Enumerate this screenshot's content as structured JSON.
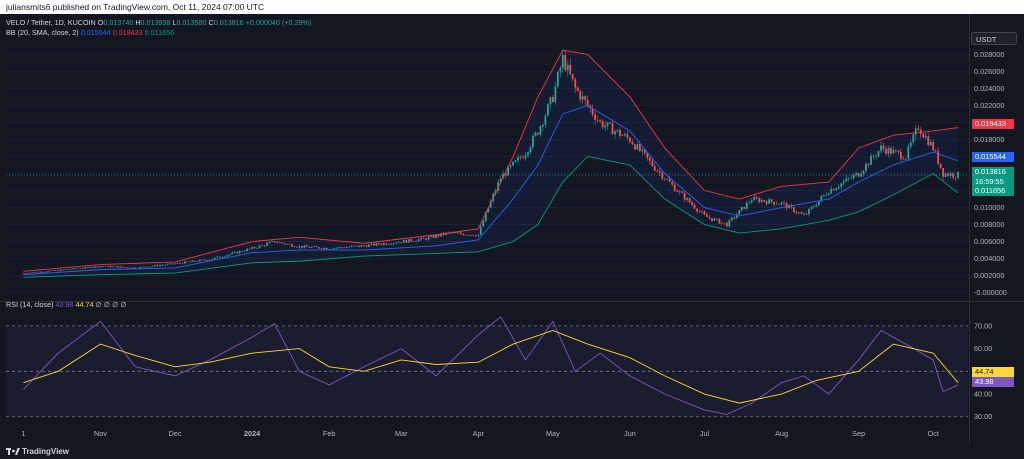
{
  "header": {
    "publisher_text": "juliansmits6 published on TradingView.com, Oct 11, 2024 07:00 UTC"
  },
  "legend": {
    "symbol": "VELO / Tether, 1D, KUCOIN",
    "o_label": "O",
    "o_value": "0.013740",
    "h_label": "H",
    "h_value": "0.013938",
    "l_label": "L",
    "l_value": "0.013580",
    "c_label": "C",
    "c_value": "0.013816",
    "change": "+0.000040 (+0.29%)",
    "bb_label": "BB (20, SMA, close, 2)",
    "bb_basis": "0.015544",
    "bb_upper": "0.019433",
    "bb_lower": "0.011656",
    "rsi_label": "RSI (14, close)",
    "rsi_value": "43.98",
    "rsi_ma": "44.74",
    "rsi_na": "∅ ∅ ∅ ∅"
  },
  "currency_badge": "USDT",
  "price_tags": {
    "bb_upper": "0.019433",
    "bb_basis": "0.015544",
    "last_price": "0.013816",
    "countdown": "16:59:55",
    "bb_lower": "0.011656",
    "rsi_ma": "44.74",
    "rsi": "43.98"
  },
  "colors": {
    "background": "#131722",
    "candle_up": "#26a69a",
    "candle_down": "#ef5350",
    "bb_basis": "#2962ff",
    "bb_upper": "#f23645",
    "bb_lower": "#089981",
    "rsi": "#7e57c2",
    "rsi_ma": "#fdd835"
  },
  "footer": {
    "brand": "TradingView"
  },
  "chart_data": [
    {
      "type": "line",
      "title": "VELO / Tether, 1D, KUCOIN",
      "y_ticks": [
        "0.028000",
        "0.026000",
        "0.024000",
        "0.022000",
        "0.020000",
        "0.018000",
        "0.016000",
        "0.014000",
        "0.012000",
        "0.010000",
        "0.008000",
        "0.006000",
        "0.004000",
        "0.002000",
        "-0.000000"
      ],
      "ylim": [
        -0.0004,
        0.0304
      ],
      "x_ticks": [
        "1",
        "Nov",
        "Dec",
        "2024",
        "Feb",
        "Mar",
        "Apr",
        "May",
        "Jun",
        "Jul",
        "Aug",
        "Sep",
        "Oct"
      ],
      "series": [
        {
          "name": "VELO/USDT close",
          "x": [
            "2023-10-01",
            "2023-10-15",
            "2023-11-01",
            "2023-11-15",
            "2023-12-01",
            "2023-12-15",
            "2024-01-01",
            "2024-01-10",
            "2024-01-20",
            "2024-02-01",
            "2024-02-15",
            "2024-03-01",
            "2024-03-10",
            "2024-03-20",
            "2024-04-01",
            "2024-04-05",
            "2024-04-10",
            "2024-04-15",
            "2024-04-20",
            "2024-04-25",
            "2024-05-01",
            "2024-05-05",
            "2024-05-10",
            "2024-05-15",
            "2024-05-20",
            "2024-06-01",
            "2024-06-10",
            "2024-06-20",
            "2024-07-01",
            "2024-07-10",
            "2024-07-20",
            "2024-08-01",
            "2024-08-10",
            "2024-08-20",
            "2024-09-01",
            "2024-09-10",
            "2024-09-20",
            "2024-09-25",
            "2024-10-01",
            "2024-10-05",
            "2024-10-11"
          ],
          "y": [
            0.0023,
            0.0026,
            0.0031,
            0.0029,
            0.0034,
            0.0039,
            0.0052,
            0.006,
            0.0054,
            0.0052,
            0.0055,
            0.006,
            0.0063,
            0.007,
            0.0068,
            0.01,
            0.0135,
            0.015,
            0.0165,
            0.019,
            0.023,
            0.0275,
            0.024,
            0.022,
            0.02,
            0.018,
            0.015,
            0.012,
            0.009,
            0.008,
            0.011,
            0.0105,
            0.009,
            0.012,
            0.014,
            0.017,
            0.016,
            0.0195,
            0.017,
            0.014,
            0.0138
          ]
        },
        {
          "name": "BB upper",
          "x": [
            "2023-10-01",
            "2023-11-01",
            "2023-12-01",
            "2024-01-01",
            "2024-01-20",
            "2024-02-15",
            "2024-03-15",
            "2024-04-01",
            "2024-04-15",
            "2024-04-25",
            "2024-05-05",
            "2024-05-15",
            "2024-06-01",
            "2024-06-15",
            "2024-07-01",
            "2024-07-15",
            "2024-08-01",
            "2024-08-20",
            "2024-09-01",
            "2024-09-15",
            "2024-10-01",
            "2024-10-11"
          ],
          "y": [
            0.0025,
            0.0033,
            0.0036,
            0.006,
            0.0065,
            0.0058,
            0.0068,
            0.0075,
            0.016,
            0.023,
            0.0285,
            0.028,
            0.023,
            0.017,
            0.012,
            0.011,
            0.0125,
            0.013,
            0.017,
            0.0185,
            0.019,
            0.0194
          ]
        },
        {
          "name": "BB basis",
          "x": [
            "2023-10-01",
            "2023-11-01",
            "2023-12-01",
            "2024-01-01",
            "2024-01-20",
            "2024-02-15",
            "2024-03-15",
            "2024-04-01",
            "2024-04-15",
            "2024-04-25",
            "2024-05-05",
            "2024-05-15",
            "2024-06-01",
            "2024-06-15",
            "2024-07-01",
            "2024-07-15",
            "2024-08-01",
            "2024-08-20",
            "2024-09-01",
            "2024-09-15",
            "2024-10-01",
            "2024-10-11"
          ],
          "y": [
            0.0021,
            0.0027,
            0.0029,
            0.0047,
            0.005,
            0.005,
            0.0055,
            0.0062,
            0.011,
            0.015,
            0.021,
            0.022,
            0.019,
            0.014,
            0.01,
            0.009,
            0.01,
            0.011,
            0.013,
            0.015,
            0.0165,
            0.0155
          ]
        },
        {
          "name": "BB lower",
          "x": [
            "2023-10-01",
            "2023-11-01",
            "2023-12-01",
            "2024-01-01",
            "2024-01-20",
            "2024-02-15",
            "2024-03-15",
            "2024-04-01",
            "2024-04-15",
            "2024-04-25",
            "2024-05-05",
            "2024-05-15",
            "2024-06-01",
            "2024-06-15",
            "2024-07-01",
            "2024-07-15",
            "2024-08-01",
            "2024-08-20",
            "2024-09-01",
            "2024-09-15",
            "2024-10-01",
            "2024-10-11"
          ],
          "y": [
            0.0018,
            0.0021,
            0.0023,
            0.0035,
            0.0037,
            0.0043,
            0.0046,
            0.0048,
            0.006,
            0.008,
            0.013,
            0.016,
            0.015,
            0.011,
            0.008,
            0.007,
            0.0075,
            0.0085,
            0.0095,
            0.0115,
            0.014,
            0.0117
          ]
        }
      ]
    },
    {
      "type": "line",
      "title": "RSI (14, close)",
      "y_ticks": [
        "70.00",
        "60.00",
        "50.00",
        "40.00",
        "30.00"
      ],
      "ylim": [
        29,
        77
      ],
      "series": [
        {
          "name": "RSI",
          "x": [
            "2023-10-01",
            "2023-10-15",
            "2023-11-01",
            "2023-11-15",
            "2023-12-01",
            "2023-12-15",
            "2024-01-01",
            "2024-01-10",
            "2024-01-20",
            "2024-02-01",
            "2024-02-15",
            "2024-03-01",
            "2024-03-15",
            "2024-04-01",
            "2024-04-10",
            "2024-04-20",
            "2024-05-01",
            "2024-05-10",
            "2024-05-20",
            "2024-06-01",
            "2024-06-15",
            "2024-07-01",
            "2024-07-10",
            "2024-07-20",
            "2024-08-01",
            "2024-08-10",
            "2024-08-20",
            "2024-09-01",
            "2024-09-10",
            "2024-09-20",
            "2024-10-01",
            "2024-10-05",
            "2024-10-11"
          ],
          "y": [
            42,
            58,
            72,
            52,
            48,
            55,
            65,
            71,
            50,
            44,
            52,
            60,
            48,
            66,
            74,
            55,
            72,
            50,
            58,
            48,
            40,
            33,
            31,
            36,
            45,
            48,
            40,
            55,
            68,
            62,
            55,
            41,
            44
          ]
        },
        {
          "name": "RSI-based MA",
          "x": [
            "2023-10-01",
            "2023-10-15",
            "2023-11-01",
            "2023-11-15",
            "2023-12-01",
            "2023-12-15",
            "2024-01-01",
            "2024-01-20",
            "2024-02-01",
            "2024-02-15",
            "2024-03-01",
            "2024-03-15",
            "2024-04-01",
            "2024-04-15",
            "2024-05-01",
            "2024-05-15",
            "2024-06-01",
            "2024-06-15",
            "2024-07-01",
            "2024-07-15",
            "2024-08-01",
            "2024-08-15",
            "2024-09-01",
            "2024-09-15",
            "2024-10-01",
            "2024-10-11"
          ],
          "y": [
            45,
            50,
            62,
            57,
            52,
            54,
            58,
            60,
            52,
            50,
            55,
            53,
            54,
            62,
            68,
            62,
            56,
            48,
            40,
            36,
            40,
            46,
            50,
            62,
            58,
            45
          ]
        }
      ]
    }
  ]
}
